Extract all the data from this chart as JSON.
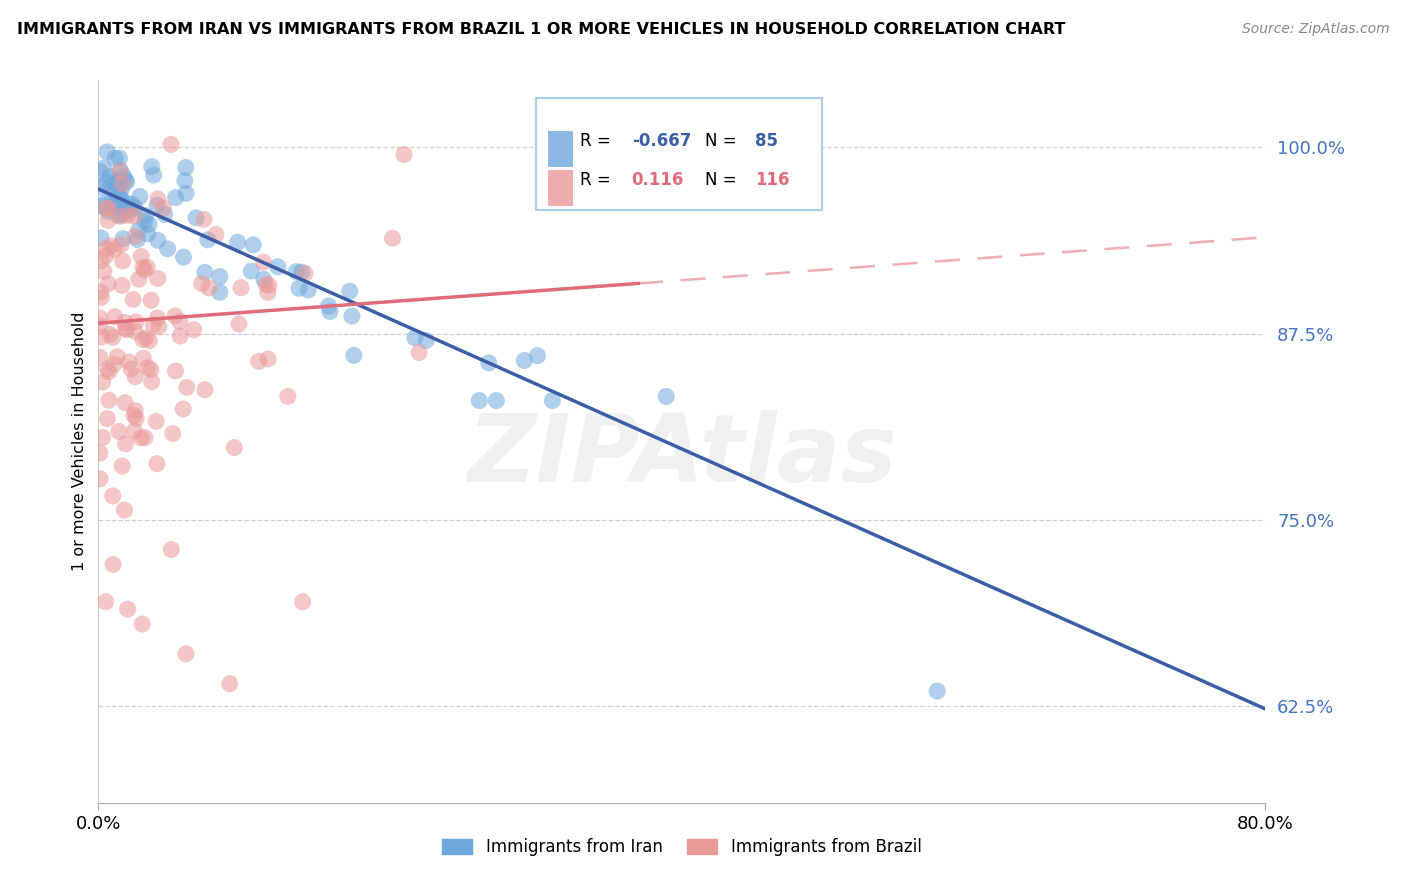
{
  "title": "IMMIGRANTS FROM IRAN VS IMMIGRANTS FROM BRAZIL 1 OR MORE VEHICLES IN HOUSEHOLD CORRELATION CHART",
  "source": "Source: ZipAtlas.com",
  "xmin": 0.0,
  "xmax": 0.8,
  "ymin": 0.56,
  "ymax": 1.045,
  "ylabel": "1 or more Vehicles in Household",
  "legend_iran": "Immigrants from Iran",
  "legend_brazil": "Immigrants from Brazil",
  "R_iran": "-0.667",
  "N_iran": "85",
  "R_brazil": "0.116",
  "N_brazil": "116",
  "color_iran": "#6fa8dc",
  "color_brazil": "#ea9999",
  "trendline_iran": "#3b5ea6",
  "trendline_brazil": "#e06c7a",
  "watermark": "ZIPAtlas",
  "yticks": [
    0.625,
    0.75,
    0.875,
    1.0
  ],
  "ytick_labels": [
    "62.5%",
    "75.0%",
    "87.5%",
    "100.0%"
  ],
  "iran_trend_x": [
    0.0,
    0.8
  ],
  "iran_trend_y": [
    0.972,
    0.623
  ],
  "brazil_trend_x0": 0.0,
  "brazil_trend_x_solid_end": 0.37,
  "brazil_trend_x_dashed_end": 0.8,
  "brazil_trend_y0": 0.882,
  "brazil_trend_slope": 0.072
}
